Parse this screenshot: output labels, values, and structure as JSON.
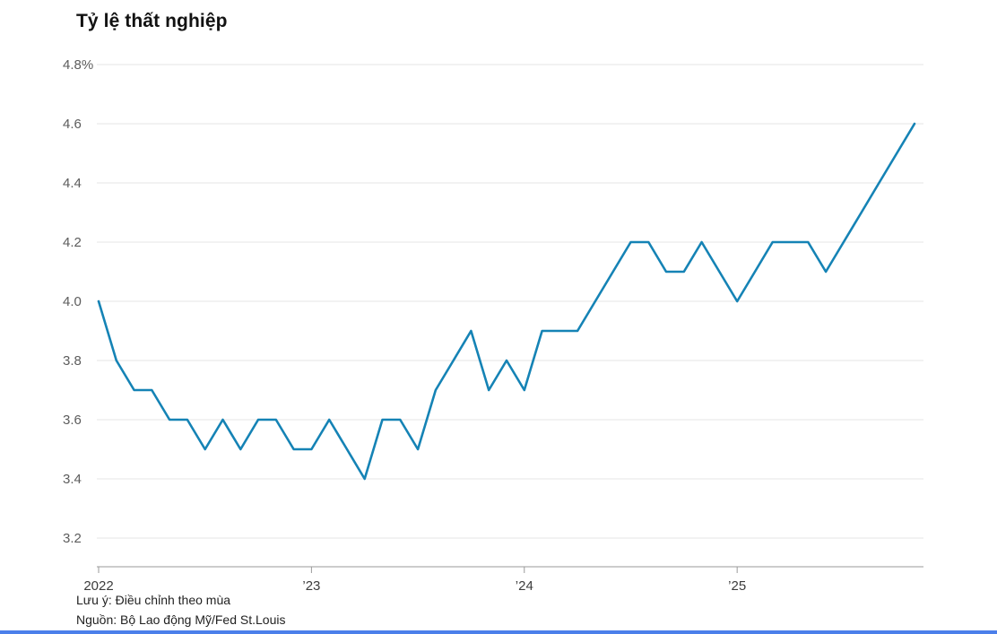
{
  "title": "Tỷ lệ thất nghiệp",
  "notes": {
    "note": "Lưu ý: Điều chỉnh theo mùa",
    "source": "Nguồn: Bộ Lao động Mỹ/Fed St.Louis"
  },
  "colors": {
    "line": "#1583b5",
    "grid": "#e4e4e4",
    "axis": "#9a9a9a",
    "y_tick_text": "#5c5c5c",
    "x_tick_text": "#3c3c3c",
    "title_text": "#121212",
    "note_text": "#222222",
    "bottom_accent": "#4b7fea"
  },
  "chart_data": {
    "type": "line",
    "title": "Tỷ lệ thất nghiệp",
    "xlabel": "",
    "ylabel": "%",
    "ylim": [
      3.1,
      4.8
    ],
    "grid": "horizontal",
    "legend": "none",
    "x": [
      "2022-01",
      "2022-02",
      "2022-03",
      "2022-04",
      "2022-05",
      "2022-06",
      "2022-07",
      "2022-08",
      "2022-09",
      "2022-10",
      "2022-11",
      "2022-12",
      "2023-01",
      "2023-02",
      "2023-03",
      "2023-04",
      "2023-05",
      "2023-06",
      "2023-07",
      "2023-08",
      "2023-09",
      "2023-10",
      "2023-11",
      "2023-12",
      "2024-01",
      "2024-02",
      "2024-03",
      "2024-04",
      "2024-05",
      "2024-06",
      "2024-07",
      "2024-08",
      "2024-09",
      "2024-10",
      "2024-11",
      "2024-12",
      "2025-01",
      "2025-02",
      "2025-03",
      "2025-04",
      "2025-05",
      "2025-06",
      "2025-07",
      "2025-08",
      "2025-09",
      "2025-10",
      "2025-11"
    ],
    "series": [
      {
        "name": "Tỷ lệ thất nghiệp",
        "values": [
          4.0,
          3.8,
          3.7,
          3.7,
          3.6,
          3.6,
          3.5,
          3.6,
          3.5,
          3.6,
          3.6,
          3.5,
          3.5,
          3.6,
          3.5,
          3.4,
          3.6,
          3.6,
          3.5,
          3.7,
          3.8,
          3.9,
          3.7,
          3.8,
          3.7,
          3.9,
          3.9,
          3.9,
          4.0,
          4.1,
          4.2,
          4.2,
          4.1,
          4.1,
          4.2,
          4.1,
          4.0,
          4.1,
          4.2,
          4.2,
          4.2,
          4.1,
          4.2,
          4.3,
          4.4,
          4.5,
          4.6
        ]
      }
    ],
    "y_ticks": [
      {
        "label": "4.8%",
        "value": 4.8
      },
      {
        "label": "4.6",
        "value": 4.6
      },
      {
        "label": "4.4",
        "value": 4.4
      },
      {
        "label": "4.2",
        "value": 4.2
      },
      {
        "label": "4.0",
        "value": 4.0
      },
      {
        "label": "3.8",
        "value": 3.8
      },
      {
        "label": "3.6",
        "value": 3.6
      },
      {
        "label": "3.4",
        "value": 3.4
      },
      {
        "label": "3.2",
        "value": 3.2
      }
    ],
    "x_ticks": [
      {
        "label": "2022",
        "month_index": 0
      },
      {
        "label": "’23",
        "month_index": 12
      },
      {
        "label": "’24",
        "month_index": 24
      },
      {
        "label": "’25",
        "month_index": 36
      }
    ]
  }
}
